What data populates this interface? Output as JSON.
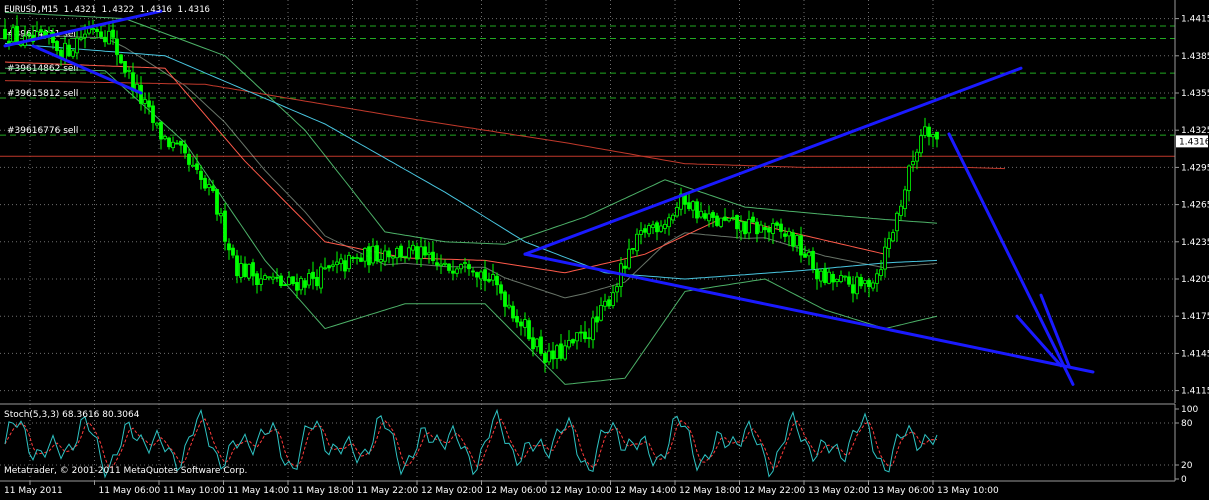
{
  "chart_data": {
    "type": "candlestick",
    "header": {
      "symbol_line": "EURUSD,M15  1.4321 1.4322 1.4316 1.4316"
    },
    "copyright": "Metatrader, © 2001-2011 MetaQuotes Software Corp.",
    "price_axis": {
      "ylim": [
        1.4105,
        1.443
      ],
      "ticks": [
        "1.4415",
        "1.4385",
        "1.4355",
        "1.4325",
        "1.4295",
        "1.4265",
        "1.4235",
        "1.4205",
        "1.4175",
        "1.4145",
        "1.4115"
      ],
      "current_price": "1.4316"
    },
    "time_axis": {
      "labels": [
        "11 May 2011",
        "11 May 06:00",
        "11 May 10:00",
        "11 May 14:00",
        "11 May 18:00",
        "11 May 22:00",
        "12 May 02:00",
        "12 May 06:00",
        "12 May 10:00",
        "12 May 14:00",
        "12 May 18:00",
        "12 May 22:00",
        "13 May 02:00",
        "13 May 06:00",
        "13 May 10:00"
      ]
    },
    "order_lines": [
      {
        "label": "#39604911 sell",
        "price": 1.4399
      },
      {
        "label": "#39614862 sell",
        "price": 1.4371
      },
      {
        "label": "#39615812 sell",
        "price": 1.4351
      },
      {
        "label": "#39616776 sell",
        "price": 1.4321
      }
    ],
    "extra_levels": [
      1.4409,
      1.4304
    ],
    "price_anchors": [
      [
        0,
        1.4405
      ],
      [
        5,
        1.4395
      ],
      [
        10,
        1.4398
      ],
      [
        15,
        1.4388
      ],
      [
        18,
        1.4398
      ],
      [
        22,
        1.441
      ],
      [
        26,
        1.4402
      ],
      [
        32,
        1.4362
      ],
      [
        38,
        1.4325
      ],
      [
        44,
        1.4305
      ],
      [
        52,
        1.427
      ],
      [
        58,
        1.4215
      ],
      [
        63,
        1.4208
      ],
      [
        70,
        1.42
      ],
      [
        78,
        1.4207
      ],
      [
        86,
        1.4218
      ],
      [
        95,
        1.4228
      ],
      [
        103,
        1.4225
      ],
      [
        110,
        1.4212
      ],
      [
        115,
        1.4225
      ],
      [
        119,
        1.421
      ],
      [
        124,
        1.4195
      ],
      [
        130,
        1.4165
      ],
      [
        136,
        1.414
      ],
      [
        142,
        1.4152
      ],
      [
        148,
        1.417
      ],
      [
        154,
        1.421
      ],
      [
        160,
        1.4245
      ],
      [
        166,
        1.4255
      ],
      [
        170,
        1.427
      ],
      [
        175,
        1.4253
      ],
      [
        182,
        1.4248
      ],
      [
        190,
        1.4245
      ],
      [
        196,
        1.424
      ],
      [
        200,
        1.4225
      ],
      [
        204,
        1.4205
      ],
      [
        208,
        1.4203
      ],
      [
        214,
        1.4198
      ],
      [
        218,
        1.421
      ],
      [
        222,
        1.4245
      ],
      [
        226,
        1.429
      ],
      [
        230,
        1.4333
      ],
      [
        233,
        1.4316
      ]
    ],
    "moving_averages": [
      {
        "name": "MA fast",
        "color": "#ff5a4a",
        "points": [
          [
            0,
            1.438
          ],
          [
            40,
            1.4375
          ],
          [
            60,
            1.43
          ],
          [
            80,
            1.4235
          ],
          [
            100,
            1.4222
          ],
          [
            120,
            1.422
          ],
          [
            140,
            1.421
          ],
          [
            160,
            1.4225
          ],
          [
            180,
            1.4255
          ],
          [
            200,
            1.424
          ],
          [
            220,
            1.4225
          ]
        ]
      },
      {
        "name": "MA slow",
        "color": "#c0392b",
        "points": [
          [
            0,
            1.4365
          ],
          [
            50,
            1.4362
          ],
          [
            100,
            1.4335
          ],
          [
            140,
            1.4315
          ],
          [
            170,
            1.4298
          ],
          [
            200,
            1.4295
          ],
          [
            240,
            1.4295
          ],
          [
            250,
            1.4294
          ]
        ]
      },
      {
        "name": "MA mid",
        "color": "#49c6e0",
        "points": [
          [
            0,
            1.4395
          ],
          [
            40,
            1.4385
          ],
          [
            80,
            1.433
          ],
          [
            110,
            1.4275
          ],
          [
            130,
            1.4235
          ],
          [
            150,
            1.421
          ],
          [
            170,
            1.4205
          ],
          [
            200,
            1.4212
          ],
          [
            220,
            1.4218
          ],
          [
            233,
            1.422
          ]
        ]
      }
    ],
    "bollinger_bands": {
      "color": "#5bd07a",
      "upper": [
        [
          0,
          1.4425
        ],
        [
          30,
          1.442
        ],
        [
          55,
          1.439
        ],
        [
          75,
          1.433
        ],
        [
          95,
          1.4248
        ],
        [
          110,
          1.424
        ],
        [
          125,
          1.4238
        ],
        [
          145,
          1.426
        ],
        [
          165,
          1.429
        ],
        [
          185,
          1.4268
        ],
        [
          205,
          1.4262
        ],
        [
          220,
          1.4258
        ],
        [
          233,
          1.4255
        ]
      ],
      "lower": [
        [
          0,
          1.438
        ],
        [
          25,
          1.4378
        ],
        [
          45,
          1.432
        ],
        [
          65,
          1.4225
        ],
        [
          80,
          1.417
        ],
        [
          100,
          1.419
        ],
        [
          120,
          1.419
        ],
        [
          140,
          1.4125
        ],
        [
          155,
          1.413
        ],
        [
          170,
          1.42
        ],
        [
          190,
          1.421
        ],
        [
          205,
          1.4185
        ],
        [
          220,
          1.417
        ],
        [
          233,
          1.418
        ]
      ]
    },
    "trendlines_price": [
      {
        "name": "upper-trendline",
        "from": [
          130,
          1.4225
        ],
        "to": [
          254,
          1.4375
        ]
      },
      {
        "name": "lower-trendline",
        "from": [
          130,
          1.4225
        ],
        "to": [
          272,
          1.413
        ]
      },
      {
        "name": "flag-top",
        "from": [
          0,
          1.4393
        ],
        "to": [
          39,
          1.4421
        ]
      },
      {
        "name": "flag-bottom",
        "from": [
          7,
          1.4393
        ],
        "to": [
          34,
          1.4355
        ]
      },
      {
        "name": "projection-arrow",
        "from": [
          236,
          1.4322
        ],
        "to": [
          267,
          1.412
        ]
      },
      {
        "name": "arrowhead-left",
        "from": [
          253,
          1.4175
        ],
        "to": [
          264,
          1.4135
        ]
      },
      {
        "name": "arrowhead-right",
        "from": [
          259,
          1.4192
        ],
        "to": [
          266,
          1.4135
        ]
      }
    ],
    "stochastic": {
      "label": "Stoch(5,3,3) 68.3616 80.3064",
      "ticks": [
        "100",
        "80",
        "20",
        "0"
      ],
      "main_color": "#2ec3c3",
      "signal_color": "#ff3b3b"
    },
    "colors": {
      "background": "#000000",
      "candle": "#00ff00",
      "grid": "#6f6f6f",
      "order_line": "#22aa22",
      "trendline": "#1a1aff"
    }
  }
}
